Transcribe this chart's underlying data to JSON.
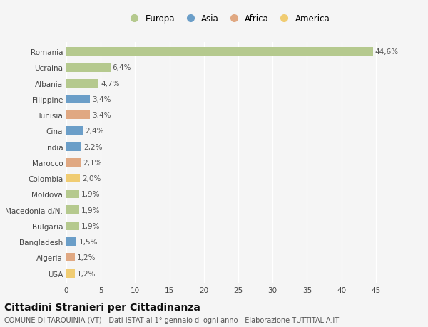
{
  "countries": [
    "Romania",
    "Ucraina",
    "Albania",
    "Filippine",
    "Tunisia",
    "Cina",
    "India",
    "Marocco",
    "Colombia",
    "Moldova",
    "Macedonia d/N.",
    "Bulgaria",
    "Bangladesh",
    "Algeria",
    "USA"
  ],
  "values": [
    44.6,
    6.4,
    4.7,
    3.4,
    3.4,
    2.4,
    2.2,
    2.1,
    2.0,
    1.9,
    1.9,
    1.9,
    1.5,
    1.2,
    1.2
  ],
  "labels": [
    "44,6%",
    "6,4%",
    "4,7%",
    "3,4%",
    "3,4%",
    "2,4%",
    "2,2%",
    "2,1%",
    "2,0%",
    "1,9%",
    "1,9%",
    "1,9%",
    "1,5%",
    "1,2%",
    "1,2%"
  ],
  "continents": [
    "Europa",
    "Europa",
    "Europa",
    "Asia",
    "Africa",
    "Asia",
    "Asia",
    "Africa",
    "America",
    "Europa",
    "Europa",
    "Europa",
    "Asia",
    "Africa",
    "America"
  ],
  "colors": {
    "Europa": "#b5c98e",
    "Asia": "#6b9ec8",
    "Africa": "#e0a882",
    "America": "#f0cc72"
  },
  "legend_order": [
    "Europa",
    "Asia",
    "Africa",
    "America"
  ],
  "xlim": [
    0,
    47
  ],
  "xticks": [
    0,
    5,
    10,
    15,
    20,
    25,
    30,
    35,
    40,
    45
  ],
  "title": "Cittadini Stranieri per Cittadinanza",
  "subtitle": "COMUNE DI TARQUINIA (VT) - Dati ISTAT al 1° gennaio di ogni anno - Elaborazione TUTTITALIA.IT",
  "background_color": "#f5f5f5",
  "bar_height": 0.55,
  "grid_color": "#ffffff",
  "label_fontsize": 7.5,
  "tick_fontsize": 7.5,
  "title_fontsize": 10,
  "subtitle_fontsize": 7
}
